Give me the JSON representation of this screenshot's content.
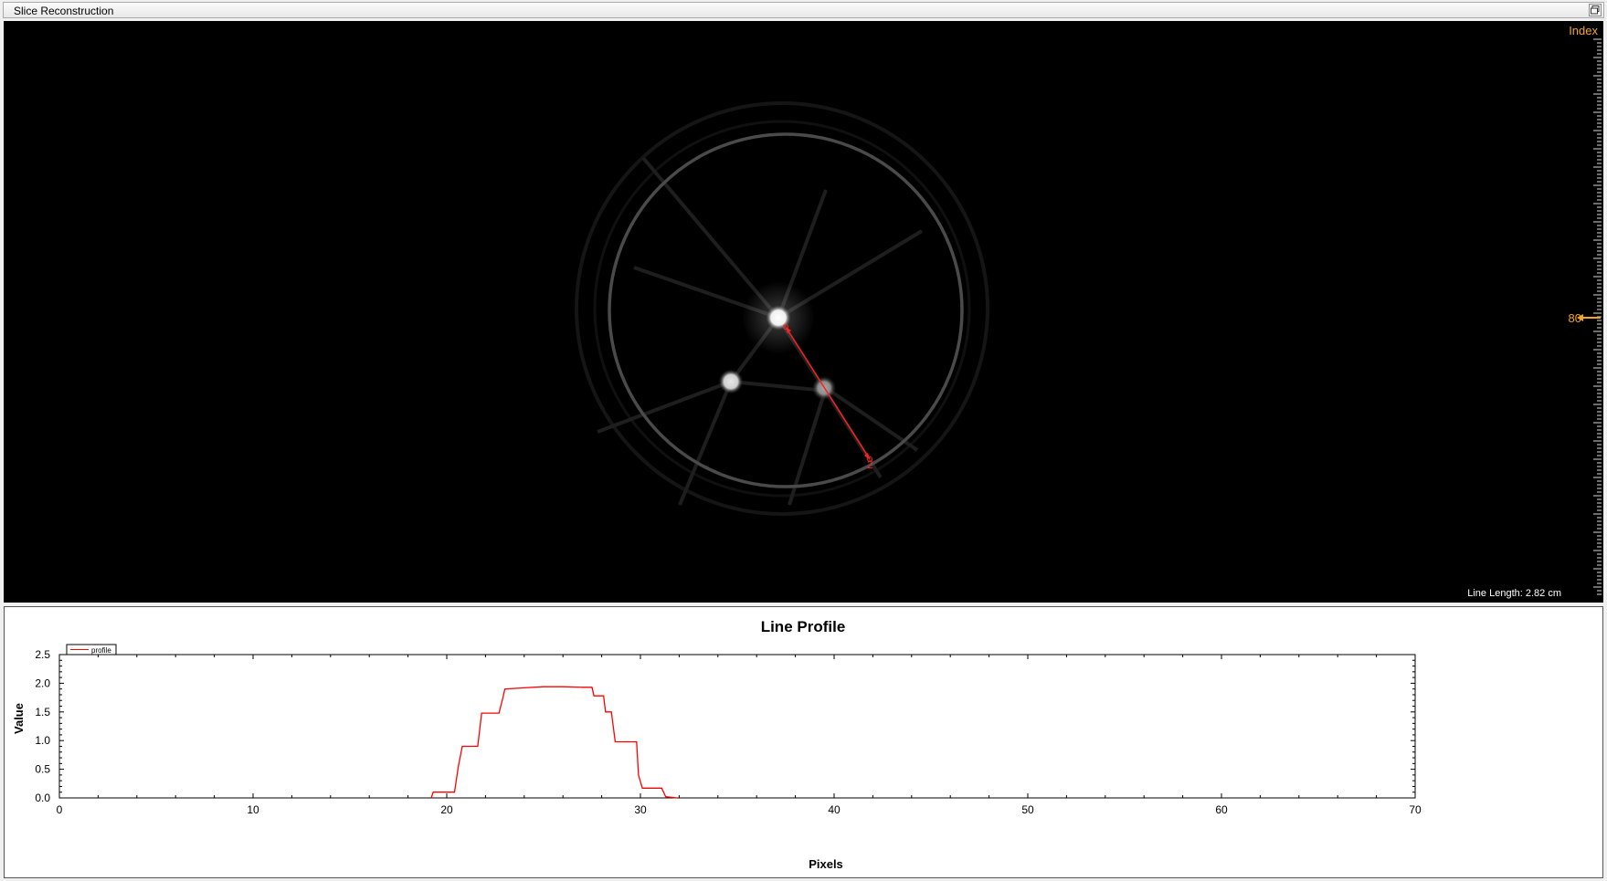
{
  "window": {
    "title": "Slice Reconstruction",
    "restore_icon": "restore-window-icon"
  },
  "viewer": {
    "index_label": "Index",
    "index_value": "80",
    "line_length": "Line Length: 2.82 cm",
    "marker_label": "2",
    "accent_color": "#f5a623",
    "line_color": "#ff2020"
  },
  "chart_data": {
    "type": "line",
    "title": "Line Profile",
    "xlabel": "Pixels",
    "ylabel": "Value",
    "xlim": [
      0,
      70
    ],
    "ylim": [
      0,
      2.5
    ],
    "xticks": [
      0,
      10,
      20,
      30,
      40,
      50,
      60,
      70
    ],
    "yticks": [
      0.0,
      0.5,
      1.0,
      1.5,
      2.0,
      2.5
    ],
    "legend": "top-left",
    "series": [
      {
        "name": "profile",
        "color": "#ff0000",
        "x": [
          19.2,
          19.3,
          20.4,
          20.6,
          20.8,
          21.0,
          21.6,
          21.8,
          22.7,
          22.9,
          23.0,
          24.0,
          25.0,
          26.0,
          27.0,
          27.5,
          27.6,
          28.1,
          28.2,
          28.5,
          28.7,
          29.8,
          29.9,
          30.1,
          31.1,
          31.3,
          31.9
        ],
        "y": [
          0.0,
          0.1,
          0.1,
          0.55,
          0.9,
          0.9,
          0.9,
          1.48,
          1.48,
          1.75,
          1.9,
          1.92,
          1.94,
          1.94,
          1.93,
          1.93,
          1.78,
          1.78,
          1.5,
          1.5,
          0.98,
          0.98,
          0.4,
          0.17,
          0.17,
          0.02,
          0.0
        ]
      }
    ]
  }
}
